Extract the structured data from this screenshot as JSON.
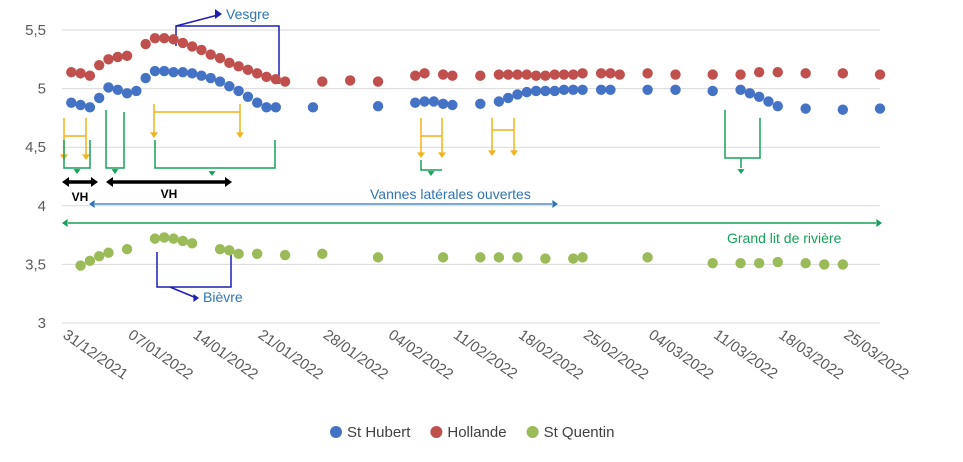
{
  "chart_data": {
    "type": "scatter",
    "ylim": [
      3,
      5.5
    ],
    "yticks": [
      "3",
      "3,5",
      "4",
      "4,5",
      "5",
      "5,5"
    ],
    "xticks": [
      "31/12/2021",
      "07/01/2022",
      "14/01/2022",
      "21/01/2022",
      "28/01/2022",
      "04/02/2022",
      "11/02/2022",
      "18/02/2022",
      "25/02/2022",
      "04/03/2022",
      "11/03/2022",
      "18/03/2022",
      "25/03/2022"
    ],
    "x_start_date": "31/12/2021",
    "x_end_date": "29/03/2022",
    "grid": "horizontal",
    "legend_position": "bottom",
    "series": [
      {
        "name": "St Hubert",
        "color": "#4472C4",
        "points": [
          [
            "01/01/2022",
            4.88
          ],
          [
            "02/01/2022",
            4.86
          ],
          [
            "03/01/2022",
            4.84
          ],
          [
            "04/01/2022",
            4.92
          ],
          [
            "05/01/2022",
            5.01
          ],
          [
            "06/01/2022",
            4.99
          ],
          [
            "07/01/2022",
            4.96
          ],
          [
            "08/01/2022",
            4.98
          ],
          [
            "09/01/2022",
            5.09
          ],
          [
            "10/01/2022",
            5.15
          ],
          [
            "11/01/2022",
            5.15
          ],
          [
            "12/01/2022",
            5.14
          ],
          [
            "13/01/2022",
            5.14
          ],
          [
            "14/01/2022",
            5.13
          ],
          [
            "15/01/2022",
            5.11
          ],
          [
            "16/01/2022",
            5.09
          ],
          [
            "17/01/2022",
            5.06
          ],
          [
            "18/01/2022",
            5.02
          ],
          [
            "19/01/2022",
            4.98
          ],
          [
            "20/01/2022",
            4.93
          ],
          [
            "21/01/2022",
            4.88
          ],
          [
            "22/01/2022",
            4.84
          ],
          [
            "23/01/2022",
            4.84
          ],
          [
            "27/01/2022",
            4.84
          ],
          [
            "03/02/2022",
            4.85
          ],
          [
            "07/02/2022",
            4.88
          ],
          [
            "08/02/2022",
            4.89
          ],
          [
            "09/02/2022",
            4.89
          ],
          [
            "10/02/2022",
            4.87
          ],
          [
            "11/02/2022",
            4.86
          ],
          [
            "14/02/2022",
            4.87
          ],
          [
            "16/02/2022",
            4.89
          ],
          [
            "17/02/2022",
            4.92
          ],
          [
            "18/02/2022",
            4.95
          ],
          [
            "19/02/2022",
            4.97
          ],
          [
            "20/02/2022",
            4.98
          ],
          [
            "21/02/2022",
            4.98
          ],
          [
            "22/02/2022",
            4.98
          ],
          [
            "23/02/2022",
            4.99
          ],
          [
            "24/02/2022",
            4.99
          ],
          [
            "25/02/2022",
            4.99
          ],
          [
            "27/02/2022",
            4.99
          ],
          [
            "28/02/2022",
            4.99
          ],
          [
            "04/03/2022",
            4.99
          ],
          [
            "07/03/2022",
            4.99
          ],
          [
            "11/03/2022",
            4.98
          ],
          [
            "14/03/2022",
            4.99
          ],
          [
            "15/03/2022",
            4.96
          ],
          [
            "16/03/2022",
            4.93
          ],
          [
            "17/03/2022",
            4.89
          ],
          [
            "18/03/2022",
            4.85
          ],
          [
            "21/03/2022",
            4.83
          ],
          [
            "25/03/2022",
            4.82
          ],
          [
            "29/03/2022",
            4.83
          ]
        ]
      },
      {
        "name": "Hollande",
        "color": "#C0504D",
        "points": [
          [
            "01/01/2022",
            5.14
          ],
          [
            "02/01/2022",
            5.13
          ],
          [
            "03/01/2022",
            5.11
          ],
          [
            "04/01/2022",
            5.2
          ],
          [
            "05/01/2022",
            5.25
          ],
          [
            "06/01/2022",
            5.27
          ],
          [
            "07/01/2022",
            5.28
          ],
          [
            "09/01/2022",
            5.38
          ],
          [
            "10/01/2022",
            5.43
          ],
          [
            "11/01/2022",
            5.43
          ],
          [
            "12/01/2022",
            5.42
          ],
          [
            "13/01/2022",
            5.39
          ],
          [
            "14/01/2022",
            5.36
          ],
          [
            "15/01/2022",
            5.33
          ],
          [
            "16/01/2022",
            5.29
          ],
          [
            "17/01/2022",
            5.26
          ],
          [
            "18/01/2022",
            5.22
          ],
          [
            "19/01/2022",
            5.19
          ],
          [
            "20/01/2022",
            5.16
          ],
          [
            "21/01/2022",
            5.13
          ],
          [
            "22/01/2022",
            5.1
          ],
          [
            "23/01/2022",
            5.08
          ],
          [
            "24/01/2022",
            5.06
          ],
          [
            "28/01/2022",
            5.06
          ],
          [
            "31/01/2022",
            5.07
          ],
          [
            "03/02/2022",
            5.06
          ],
          [
            "07/02/2022",
            5.11
          ],
          [
            "08/02/2022",
            5.13
          ],
          [
            "10/02/2022",
            5.12
          ],
          [
            "11/02/2022",
            5.11
          ],
          [
            "14/02/2022",
            5.11
          ],
          [
            "16/02/2022",
            5.12
          ],
          [
            "17/02/2022",
            5.12
          ],
          [
            "18/02/2022",
            5.12
          ],
          [
            "19/02/2022",
            5.12
          ],
          [
            "20/02/2022",
            5.11
          ],
          [
            "21/02/2022",
            5.11
          ],
          [
            "22/02/2022",
            5.12
          ],
          [
            "23/02/2022",
            5.12
          ],
          [
            "24/02/2022",
            5.12
          ],
          [
            "25/02/2022",
            5.13
          ],
          [
            "27/02/2022",
            5.13
          ],
          [
            "28/02/2022",
            5.13
          ],
          [
            "01/03/2022",
            5.12
          ],
          [
            "04/03/2022",
            5.13
          ],
          [
            "07/03/2022",
            5.12
          ],
          [
            "11/03/2022",
            5.12
          ],
          [
            "14/03/2022",
            5.12
          ],
          [
            "16/03/2022",
            5.14
          ],
          [
            "18/03/2022",
            5.14
          ],
          [
            "21/03/2022",
            5.13
          ],
          [
            "25/03/2022",
            5.13
          ],
          [
            "29/03/2022",
            5.12
          ]
        ]
      },
      {
        "name": "St Quentin",
        "color": "#9BBB59",
        "points": [
          [
            "02/01/2022",
            3.49
          ],
          [
            "03/01/2022",
            3.53
          ],
          [
            "04/01/2022",
            3.57
          ],
          [
            "05/01/2022",
            3.6
          ],
          [
            "07/01/2022",
            3.63
          ],
          [
            "10/01/2022",
            3.72
          ],
          [
            "11/01/2022",
            3.73
          ],
          [
            "12/01/2022",
            3.72
          ],
          [
            "13/01/2022",
            3.7
          ],
          [
            "14/01/2022",
            3.68
          ],
          [
            "17/01/2022",
            3.63
          ],
          [
            "18/01/2022",
            3.62
          ],
          [
            "19/01/2022",
            3.59
          ],
          [
            "21/01/2022",
            3.59
          ],
          [
            "24/01/2022",
            3.58
          ],
          [
            "28/01/2022",
            3.59
          ],
          [
            "03/02/2022",
            3.56
          ],
          [
            "10/02/2022",
            3.56
          ],
          [
            "14/02/2022",
            3.56
          ],
          [
            "16/02/2022",
            3.56
          ],
          [
            "18/02/2022",
            3.56
          ],
          [
            "21/02/2022",
            3.55
          ],
          [
            "24/02/2022",
            3.55
          ],
          [
            "25/02/2022",
            3.56
          ],
          [
            "04/03/2022",
            3.56
          ],
          [
            "11/03/2022",
            3.51
          ],
          [
            "14/03/2022",
            3.51
          ],
          [
            "16/03/2022",
            3.51
          ],
          [
            "18/03/2022",
            3.52
          ],
          [
            "21/03/2022",
            3.51
          ],
          [
            "23/03/2022",
            3.5
          ],
          [
            "25/03/2022",
            3.5
          ]
        ]
      }
    ],
    "annotations": {
      "vesgre": "Vesgre",
      "bievre": "Bièvre",
      "vanne_hollande": "VH",
      "vannes_laterales": "Vannes latérales ouvertes",
      "grand_lit": "Grand lit de rivière"
    },
    "annotation_colors": {
      "navy": "#1F1FB4",
      "blue_text": "#2E75B6",
      "orange": "#F2B21B",
      "green": "#17A05A",
      "black": "#000000"
    }
  }
}
